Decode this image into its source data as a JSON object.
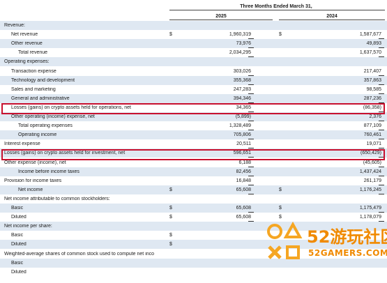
{
  "header": {
    "period": "Three Months Ended March 31,",
    "col_2025": "2025",
    "col_2024": "2024"
  },
  "rows": [
    {
      "label": "Revenue:",
      "indent": 0,
      "v25": "",
      "v24": "",
      "d25": "",
      "d24": "",
      "shaded": true
    },
    {
      "label": "Net revenue",
      "indent": 1,
      "v25": "1,960,319",
      "v24": "1,587,677",
      "d25": "$",
      "d24": "$",
      "shaded": false
    },
    {
      "label": "Other revenue",
      "indent": 1,
      "v25": "73,976",
      "v24": "49,893",
      "d25": "",
      "d24": "",
      "shaded": true
    },
    {
      "label": "Total revenue",
      "indent": 2,
      "v25": "2,034,295",
      "v24": "1,637,570",
      "d25": "",
      "d24": "",
      "shaded": false
    },
    {
      "label": "Operating expenses:",
      "indent": 0,
      "v25": "",
      "v24": "",
      "d25": "",
      "d24": "",
      "shaded": true
    },
    {
      "label": "Transaction expense",
      "indent": 1,
      "v25": "303,026",
      "v24": "217,407",
      "d25": "",
      "d24": "",
      "shaded": false
    },
    {
      "label": "Technology and development",
      "indent": 1,
      "v25": "355,368",
      "v24": "357,863",
      "d25": "",
      "d24": "",
      "shaded": true
    },
    {
      "label": "Sales and marketing",
      "indent": 1,
      "v25": "247,283",
      "v24": "98,585",
      "d25": "",
      "d24": "",
      "shaded": false
    },
    {
      "label": "General and administrative",
      "indent": 1,
      "v25": "394,346",
      "v24": "287,236",
      "d25": "",
      "d24": "",
      "shaded": true
    },
    {
      "label": "Losses (gains) on crypto assets held for operations, net",
      "indent": 1,
      "v25": "34,365",
      "v24": "(86,358)",
      "d25": "",
      "d24": "",
      "shaded": false
    },
    {
      "label": "Other operating (income) expense, net",
      "indent": 1,
      "v25": "(5,899)",
      "v24": "2,376",
      "d25": "",
      "d24": "",
      "shaded": true
    },
    {
      "label": "Total operating expenses",
      "indent": 2,
      "v25": "1,328,489",
      "v24": "877,109",
      "d25": "",
      "d24": "",
      "shaded": false
    },
    {
      "label": "Operating income",
      "indent": 2,
      "v25": "705,806",
      "v24": "760,461",
      "d25": "",
      "d24": "",
      "shaded": true
    },
    {
      "label": "Interest expense",
      "indent": 0,
      "v25": "20,511",
      "v24": "19,071",
      "d25": "",
      "d24": "",
      "shaded": false
    },
    {
      "label": "Losses (gains) on crypto assets held for investment, net",
      "indent": 0,
      "v25": "596,651",
      "v24": "(650,429)",
      "d25": "",
      "d24": "",
      "shaded": true
    },
    {
      "label": "Other expense (income), net",
      "indent": 0,
      "v25": "6,188",
      "v24": "(45,605)",
      "d25": "",
      "d24": "",
      "shaded": false
    },
    {
      "label": "Income before income taxes",
      "indent": 2,
      "v25": "82,456",
      "v24": "1,437,424",
      "d25": "",
      "d24": "",
      "shaded": true
    },
    {
      "label": "Provision for income taxes",
      "indent": 0,
      "v25": "16,848",
      "v24": "261,179",
      "d25": "",
      "d24": "",
      "shaded": false
    },
    {
      "label": "Net income",
      "indent": 2,
      "v25": "65,608",
      "v24": "1,176,245",
      "d25": "$",
      "d24": "$",
      "shaded": true
    },
    {
      "label": "Net income attributable to common stockholders:",
      "indent": 0,
      "v25": "",
      "v24": "",
      "d25": "",
      "d24": "",
      "shaded": false
    },
    {
      "label": "Basic",
      "indent": 1,
      "v25": "65,608",
      "v24": "1,175,479",
      "d25": "$",
      "d24": "$",
      "shaded": true
    },
    {
      "label": "Diluted",
      "indent": 1,
      "v25": "65,608",
      "v24": "1,178,079",
      "d25": "$",
      "d24": "$",
      "shaded": false
    },
    {
      "label": "Net income per share:",
      "indent": 0,
      "v25": "",
      "v24": "",
      "d25": "",
      "d24": "",
      "shaded": true
    },
    {
      "label": "Basic",
      "indent": 1,
      "v25": "",
      "v24": "",
      "d25": "$",
      "d24": "",
      "shaded": false
    },
    {
      "label": "Diluted",
      "indent": 1,
      "v25": "",
      "v24": "",
      "d25": "$",
      "d24": "",
      "shaded": true
    },
    {
      "label": "Weighted-average shares of common stock used to compute net inco",
      "indent": 0,
      "v25": "",
      "v24": "",
      "d25": "",
      "d24": "",
      "shaded": false
    },
    {
      "label": "Basic",
      "indent": 1,
      "v25": "",
      "v24": "",
      "d25": "",
      "d24": "",
      "shaded": true
    },
    {
      "label": "Diluted",
      "indent": 1,
      "v25": "",
      "v24": "",
      "d25": "",
      "d24": "",
      "shaded": false
    }
  ],
  "watermark": {
    "brand_cn": "52游玩社区",
    "brand_en": "52GAMERS.COM"
  },
  "colors": {
    "highlight_border": "#c8102e",
    "row_shade": "#dfe8f2",
    "watermark": "#f08a00"
  }
}
